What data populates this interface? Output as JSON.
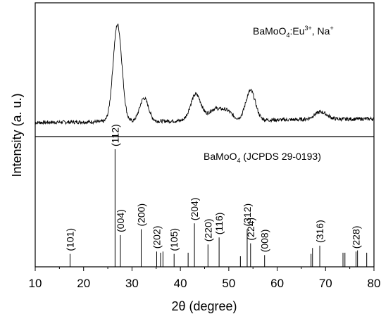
{
  "chart_data": [
    {
      "type": "line",
      "panel": "top",
      "annotation": {
        "formula_main": "BaMoO",
        "formula_sub": "4",
        "formula_rest": ":Eu",
        "formula_sup1": "3+",
        "formula_mid": ", Na",
        "formula_sup2": "+"
      },
      "xlim": [
        10,
        80
      ],
      "peaks": [
        {
          "center": 27.0,
          "height": 0.92,
          "width": 0.9
        },
        {
          "center": 32.5,
          "height": 0.22,
          "width": 0.9
        },
        {
          "center": 43.2,
          "height": 0.25,
          "width": 1.1
        },
        {
          "center": 47.0,
          "height": 0.1,
          "width": 1.2
        },
        {
          "center": 49.5,
          "height": 0.09,
          "width": 1.2
        },
        {
          "center": 54.5,
          "height": 0.28,
          "width": 1.0
        },
        {
          "center": 69.0,
          "height": 0.07,
          "width": 1.3
        }
      ],
      "line_color": "#000000"
    },
    {
      "type": "bar",
      "panel": "bottom",
      "annotation": {
        "ref_main": "BaMoO",
        "ref_sub": "4",
        "ref_rest": " (JCPDS 29-0193)"
      },
      "xlim": [
        10,
        80
      ],
      "ylim": [
        0,
        100
      ],
      "lines": [
        {
          "x": 17.2,
          "value": 11,
          "label": "(101)"
        },
        {
          "x": 26.5,
          "value": 100,
          "label": "(112)"
        },
        {
          "x": 27.6,
          "value": 27,
          "label": "(004)"
        },
        {
          "x": 31.9,
          "value": 32,
          "label": "(200)"
        },
        {
          "x": 35.1,
          "value": 13,
          "label": "(202)"
        },
        {
          "x": 35.9,
          "value": 12,
          "label": ""
        },
        {
          "x": 36.4,
          "value": 13,
          "label": ""
        },
        {
          "x": 38.7,
          "value": 11,
          "label": "(105)"
        },
        {
          "x": 41.6,
          "value": 12,
          "label": ""
        },
        {
          "x": 42.9,
          "value": 37,
          "label": "(204)"
        },
        {
          "x": 45.7,
          "value": 19,
          "label": "(220)"
        },
        {
          "x": 48.0,
          "value": 25,
          "label": "(116)"
        },
        {
          "x": 52.4,
          "value": 9,
          "label": ""
        },
        {
          "x": 53.8,
          "value": 32,
          "label": "(312)"
        },
        {
          "x": 54.5,
          "value": 20,
          "label": "(224)"
        },
        {
          "x": 57.4,
          "value": 10,
          "label": "(008)"
        },
        {
          "x": 67.0,
          "value": 11,
          "label": ""
        },
        {
          "x": 67.3,
          "value": 16,
          "label": ""
        },
        {
          "x": 68.8,
          "value": 18,
          "label": "(316)"
        },
        {
          "x": 73.6,
          "value": 12,
          "label": ""
        },
        {
          "x": 74.0,
          "value": 12,
          "label": ""
        },
        {
          "x": 76.3,
          "value": 13,
          "label": "(228)"
        },
        {
          "x": 76.6,
          "value": 14,
          "label": ""
        },
        {
          "x": 78.5,
          "value": 12,
          "label": ""
        }
      ]
    }
  ],
  "axes": {
    "xlabel": "2θ (degree)",
    "ylabel": "Intensity (a. u.)",
    "xticks": [
      "10",
      "20",
      "30",
      "40",
      "50",
      "60",
      "70",
      "80"
    ]
  }
}
